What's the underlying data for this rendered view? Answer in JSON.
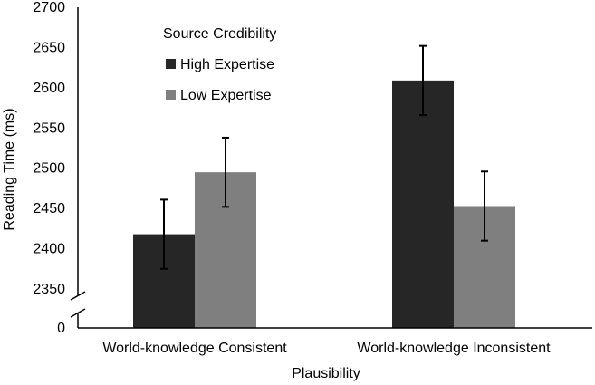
{
  "chart_data": {
    "type": "bar",
    "xlabel": "Plausibility",
    "ylabel": "Reading Time (ms)",
    "categories": [
      "World-knowledge Consistent",
      "World-knowledge Inconsistent"
    ],
    "ylim": [
      2350,
      2700
    ],
    "axis_break": true,
    "axis_origin_label": "0",
    "yticks": [
      2350,
      2400,
      2450,
      2500,
      2550,
      2600,
      2650,
      2700
    ],
    "grid": false,
    "legend": {
      "title": "Source Credibility",
      "placement": "top-left"
    },
    "series": [
      {
        "name": "High Expertise",
        "color": "#262626",
        "values": [
          2418,
          2609
        ],
        "error": [
          43,
          43
        ]
      },
      {
        "name": "Low Expertise",
        "color": "#7f7f7f",
        "values": [
          2495,
          2453
        ],
        "error": [
          43,
          43
        ]
      }
    ]
  }
}
